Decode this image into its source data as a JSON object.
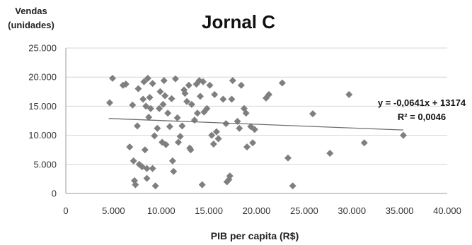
{
  "chart_data": {
    "type": "scatter",
    "title": "Jornal C",
    "xlabel": "PIB per capita (R$)",
    "ylabel": [
      "Vendas",
      "(unidades)"
    ],
    "xlim": [
      0,
      40000
    ],
    "ylim": [
      0,
      25000
    ],
    "x_ticks": [
      0,
      5000,
      10000,
      15000,
      20000,
      25000,
      30000,
      35000,
      40000
    ],
    "x_tick_labels": [
      "0",
      "5.000",
      "10.000",
      "15.000",
      "20.000",
      "25.000",
      "30.000",
      "35.000",
      "40.000"
    ],
    "y_ticks": [
      0,
      5000,
      10000,
      15000,
      20000,
      25000
    ],
    "y_tick_labels": [
      "0",
      "5.000",
      "10.000",
      "15.000",
      "20.000",
      "25.000"
    ],
    "grid": "horizontal",
    "marker": "diamond",
    "marker_color": "#7f7f7f",
    "trendline": {
      "slope": -0.0641,
      "intercept": 13174,
      "x_range": [
        4500,
        35400
      ],
      "equation_label": "y = -0,0641x + 13174",
      "r2_label": "R² = 0,0046"
    },
    "points": [
      {
        "x": 4600,
        "y": 15600
      },
      {
        "x": 4900,
        "y": 19800
      },
      {
        "x": 6000,
        "y": 18600
      },
      {
        "x": 6300,
        "y": 18800
      },
      {
        "x": 6700,
        "y": 8000
      },
      {
        "x": 7000,
        "y": 15200
      },
      {
        "x": 7100,
        "y": 5600
      },
      {
        "x": 7200,
        "y": 2200
      },
      {
        "x": 7300,
        "y": 1500
      },
      {
        "x": 7500,
        "y": 11600
      },
      {
        "x": 7600,
        "y": 18000
      },
      {
        "x": 7700,
        "y": 5000
      },
      {
        "x": 8000,
        "y": 4600
      },
      {
        "x": 8100,
        "y": 16200
      },
      {
        "x": 8200,
        "y": 19200
      },
      {
        "x": 8300,
        "y": 7500
      },
      {
        "x": 8400,
        "y": 15000
      },
      {
        "x": 8500,
        "y": 4300
      },
      {
        "x": 8500,
        "y": 2600
      },
      {
        "x": 8600,
        "y": 19800
      },
      {
        "x": 8700,
        "y": 13100
      },
      {
        "x": 8800,
        "y": 16500
      },
      {
        "x": 8900,
        "y": 14600
      },
      {
        "x": 9100,
        "y": 4300
      },
      {
        "x": 9100,
        "y": 18900
      },
      {
        "x": 9300,
        "y": 9900
      },
      {
        "x": 9400,
        "y": 1300
      },
      {
        "x": 9600,
        "y": 11200
      },
      {
        "x": 9800,
        "y": 14600
      },
      {
        "x": 9900,
        "y": 17500
      },
      {
        "x": 10100,
        "y": 8800
      },
      {
        "x": 10200,
        "y": 15300
      },
      {
        "x": 10300,
        "y": 19400
      },
      {
        "x": 10400,
        "y": 16800
      },
      {
        "x": 10500,
        "y": 8400
      },
      {
        "x": 10700,
        "y": 13800
      },
      {
        "x": 10900,
        "y": 11500
      },
      {
        "x": 11100,
        "y": 16300
      },
      {
        "x": 11200,
        "y": 5600
      },
      {
        "x": 11300,
        "y": 3800
      },
      {
        "x": 11500,
        "y": 19700
      },
      {
        "x": 11700,
        "y": 13000
      },
      {
        "x": 11800,
        "y": 8800
      },
      {
        "x": 12000,
        "y": 9800
      },
      {
        "x": 12200,
        "y": 11600
      },
      {
        "x": 12400,
        "y": 17800
      },
      {
        "x": 12500,
        "y": 17200
      },
      {
        "x": 12700,
        "y": 15800
      },
      {
        "x": 12900,
        "y": 18600
      },
      {
        "x": 13000,
        "y": 7800
      },
      {
        "x": 13100,
        "y": 7500
      },
      {
        "x": 13200,
        "y": 15300
      },
      {
        "x": 13500,
        "y": 12600
      },
      {
        "x": 13700,
        "y": 18800
      },
      {
        "x": 13800,
        "y": 13800
      },
      {
        "x": 14000,
        "y": 19400
      },
      {
        "x": 14100,
        "y": 16700
      },
      {
        "x": 14300,
        "y": 1500
      },
      {
        "x": 14400,
        "y": 19200
      },
      {
        "x": 14500,
        "y": 14000
      },
      {
        "x": 14800,
        "y": 14600
      },
      {
        "x": 15100,
        "y": 18600
      },
      {
        "x": 15300,
        "y": 10000
      },
      {
        "x": 15500,
        "y": 8500
      },
      {
        "x": 15600,
        "y": 17000
      },
      {
        "x": 15800,
        "y": 10600
      },
      {
        "x": 16000,
        "y": 9400
      },
      {
        "x": 16500,
        "y": 16200
      },
      {
        "x": 16800,
        "y": 12000
      },
      {
        "x": 16900,
        "y": 2000
      },
      {
        "x": 17100,
        "y": 2400
      },
      {
        "x": 17200,
        "y": 3000
      },
      {
        "x": 17400,
        "y": 16200
      },
      {
        "x": 17500,
        "y": 19400
      },
      {
        "x": 18000,
        "y": 12400
      },
      {
        "x": 18200,
        "y": 11200
      },
      {
        "x": 18400,
        "y": 18600
      },
      {
        "x": 18700,
        "y": 14600
      },
      {
        "x": 18900,
        "y": 13800
      },
      {
        "x": 19000,
        "y": 8000
      },
      {
        "x": 19400,
        "y": 11500
      },
      {
        "x": 19600,
        "y": 8700
      },
      {
        "x": 19800,
        "y": 11000
      },
      {
        "x": 21000,
        "y": 16400
      },
      {
        "x": 21300,
        "y": 17000
      },
      {
        "x": 22700,
        "y": 19000
      },
      {
        "x": 23300,
        "y": 6100
      },
      {
        "x": 23800,
        "y": 1300
      },
      {
        "x": 25900,
        "y": 13700
      },
      {
        "x": 27700,
        "y": 6900
      },
      {
        "x": 29700,
        "y": 17000
      },
      {
        "x": 31300,
        "y": 8700
      },
      {
        "x": 35400,
        "y": 10000
      }
    ]
  }
}
